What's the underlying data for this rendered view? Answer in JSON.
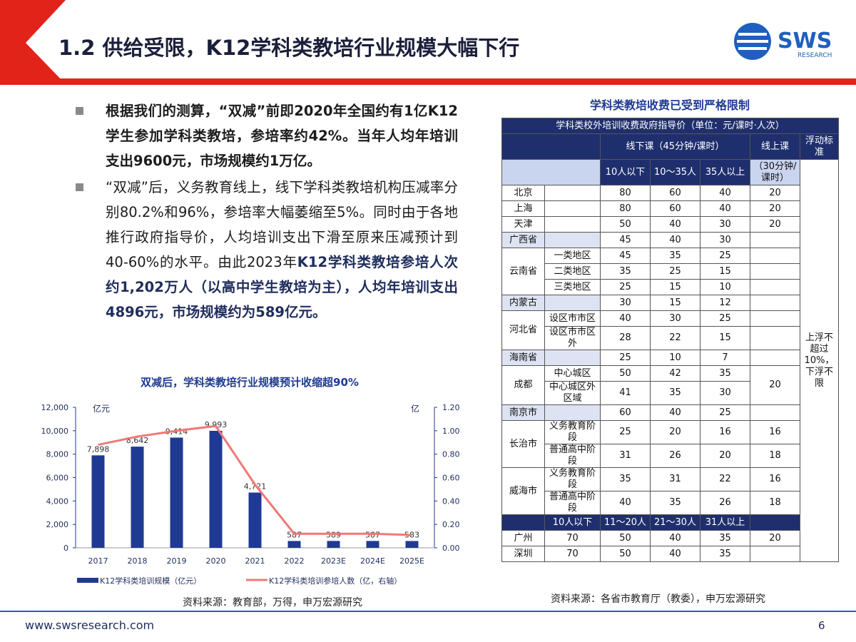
{
  "header": {
    "title": "1.2 供给受限，K12学科类教培行业规模大幅下行",
    "logo": "SWS",
    "logo_sub": "RESEARCH"
  },
  "bullets": [
    [
      "根据我们的测算，“双减”前即2020年全国约有1亿K12学生参加学科类教培，参培率约42%。当年人均年培训支出9600元，市场规模约1万亿。"
    ],
    [
      "“双减”后，义务教育线上，线下学科类教培机构压减率分别80.2%和96%，参培率大幅萎缩至5%。同时由于各地推行政府指导价，人均培训支出下滑至原来压减预计到40-60%的水平。由此2023年",
      "K12学科类教培参培人次约1,202万人（以高中学生教培为主），人均年培训支出4896元，市场规模约为589亿元。"
    ]
  ],
  "chart_data": {
    "type": "bar",
    "title": "双减后，学科类教培行业规模预计收缩超90%",
    "categories": [
      "2017",
      "2018",
      "2019",
      "2020",
      "2021",
      "2022",
      "2023E",
      "2024E",
      "2025E"
    ],
    "series": [
      {
        "name": "K12学科类培训规模（亿元）",
        "type": "bar",
        "color": "#1f3a93",
        "values": [
          7898,
          8642,
          9414,
          9993,
          4721,
          587,
          589,
          587,
          583
        ],
        "value_labels": [
          "7,898",
          "8,642",
          "9,414",
          "9,993",
          "4,721",
          "587",
          "589",
          "587",
          "583"
        ]
      },
      {
        "name": "K12学科类培训参培人数（亿，右轴）",
        "type": "line",
        "axis": "y2",
        "color": "#f07878",
        "values": [
          0.88,
          0.95,
          1.0,
          1.04,
          0.54,
          0.12,
          0.12,
          0.12,
          0.11
        ]
      }
    ],
    "ylabel": "亿元",
    "y2label": "亿",
    "ylim": [
      0,
      12000
    ],
    "yticks": [
      0,
      {
        "value": 2000,
        "label": "2,000"
      },
      {
        "value": 4000,
        "label": "4,000"
      },
      {
        "value": 6000,
        "label": "6,000"
      },
      {
        "value": 8000,
        "label": "8,000"
      },
      {
        "value": 10000,
        "label": "10,000"
      },
      {
        "value": 12000,
        "label": "12,000"
      }
    ],
    "y2lim": [
      0,
      1.2
    ],
    "y2ticks": [
      {
        "value": 0,
        "label": "0.00"
      },
      {
        "value": 0.2,
        "label": "0.20"
      },
      {
        "value": 0.4,
        "label": "0.40"
      },
      {
        "value": 0.6,
        "label": "0.60"
      },
      {
        "value": 0.8,
        "label": "0.80"
      },
      {
        "value": 1.0,
        "label": "1.00"
      },
      {
        "value": 1.2,
        "label": "1.20"
      }
    ],
    "source": "资料来源：教育部，万得，申万宏源研究"
  },
  "table": {
    "title": "学科类教培收费已受到严格限制",
    "caption": "学科类校外培训收费政府指导价（单位：元/课时·人次）",
    "offline": "线下课（45分钟/课时）",
    "online": "线上课",
    "float": "浮动标准",
    "sizes": [
      "10人以下",
      "10～35人",
      "35人以上"
    ],
    "online_note": "（30分钟/课时）",
    "float_value": "上浮不超过10%，下浮不限",
    "rows": [
      {
        "region": "北京",
        "cells": [
          80,
          60,
          40,
          20
        ]
      },
      {
        "region": "上海",
        "cells": [
          80,
          60,
          40,
          20
        ]
      },
      {
        "region": "天津",
        "cells": [
          50,
          40,
          30,
          20
        ]
      },
      {
        "region": "广西省",
        "cells": [
          45,
          40,
          30
        ]
      },
      {
        "region": "云南省",
        "subs": [
          {
            "name": "一类地区",
            "cells": [
              45,
              35,
              25
            ]
          },
          {
            "name": "二类地区",
            "cells": [
              35,
              25,
              15
            ]
          },
          {
            "name": "三类地区",
            "cells": [
              25,
              15,
              10
            ]
          }
        ]
      },
      {
        "region": "内蒙古",
        "cells": [
          30,
          15,
          12
        ]
      },
      {
        "region": "河北省",
        "subs": [
          {
            "name": "设区市市区",
            "cells": [
              40,
              30,
              25
            ]
          },
          {
            "name": "设区市市区外",
            "cells": [
              28,
              22,
              15
            ]
          }
        ]
      },
      {
        "region": "海南省",
        "cells": [
          25,
          10,
          7
        ]
      },
      {
        "region": "成都",
        "online": 20,
        "subs": [
          {
            "name": "中心城区",
            "cells": [
              50,
              42,
              35
            ]
          },
          {
            "name": "中心城区外区域",
            "cells": [
              41,
              35,
              30
            ]
          }
        ]
      },
      {
        "region": "南京市",
        "cells": [
          60,
          40,
          25
        ]
      },
      {
        "region": "长治市",
        "subs": [
          {
            "name": "义务教育阶段",
            "cells": [
              25,
              20,
              16,
              16
            ]
          },
          {
            "name": "普通高中阶段",
            "cells": [
              31,
              26,
              20,
              18
            ]
          }
        ]
      },
      {
        "region": "威海市",
        "subs": [
          {
            "name": "义务教育阶段",
            "cells": [
              35,
              31,
              22,
              16
            ]
          },
          {
            "name": "普通高中阶段",
            "cells": [
              40,
              35,
              26,
              18
            ]
          }
        ]
      }
    ],
    "tier_head": [
      "10人以下",
      "11～20人",
      "21～30人",
      "31人以上"
    ],
    "tier_rows": [
      {
        "region": "广州",
        "cells": [
          70,
          50,
          40,
          35,
          20
        ]
      },
      {
        "region": "深圳",
        "cells": [
          70,
          50,
          40,
          35
        ]
      }
    ],
    "source": "资料来源：各省市教育厅（教委），申万宏源研究"
  },
  "footer": {
    "url": "www.swsresearch.com",
    "page": "6"
  }
}
